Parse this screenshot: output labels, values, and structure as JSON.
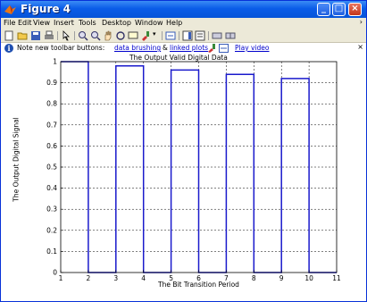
{
  "window": {
    "title": "Figure 4"
  },
  "menus": [
    "File",
    "Edit",
    "View",
    "Insert",
    "Tools",
    "Desktop",
    "Window",
    "Help"
  ],
  "toolbar_icons": [
    "new-file-icon",
    "open-folder-icon",
    "save-icon",
    "print-icon",
    "pointer-icon",
    "zoom-in-icon",
    "zoom-out-icon",
    "pan-icon",
    "rotate-icon",
    "data-cursor-icon",
    "brush-icon",
    "link-icon",
    "colorbar-icon",
    "legend-icon",
    "hide-plot-tools-icon",
    "show-plot-tools-icon"
  ],
  "notice": {
    "prefix": "Note new toolbar buttons:",
    "link1": "data brushing",
    "amp": "&",
    "link2": "linked plots",
    "video": "Play video"
  },
  "chart_data": {
    "type": "line",
    "title": "The Output Valid Digital Data",
    "xlabel": "The Bit Transition Period",
    "ylabel": "The Output Digital Signal",
    "xlim": [
      1,
      11
    ],
    "ylim": [
      0,
      1
    ],
    "xticks": [
      "1",
      "2",
      "3",
      "4",
      "5",
      "6",
      "7",
      "8",
      "9",
      "10",
      "11"
    ],
    "yticks": [
      "0",
      "0.1",
      "0.2",
      "0.3",
      "0.4",
      "0.5",
      "0.6",
      "0.7",
      "0.8",
      "0.9",
      "1"
    ],
    "grid": true,
    "color": "#1a1acc",
    "series": [
      {
        "x": [
          1,
          2,
          2,
          3,
          3,
          4,
          4,
          5,
          5,
          6,
          6,
          7,
          7,
          8,
          8,
          9,
          9,
          10,
          10,
          11
        ],
        "y": [
          1,
          1,
          0,
          0,
          0.98,
          0.98,
          0,
          0,
          0.96,
          0.96,
          0,
          0,
          0.94,
          0.94,
          0,
          0,
          0.92,
          0.92,
          0,
          0
        ]
      }
    ]
  }
}
